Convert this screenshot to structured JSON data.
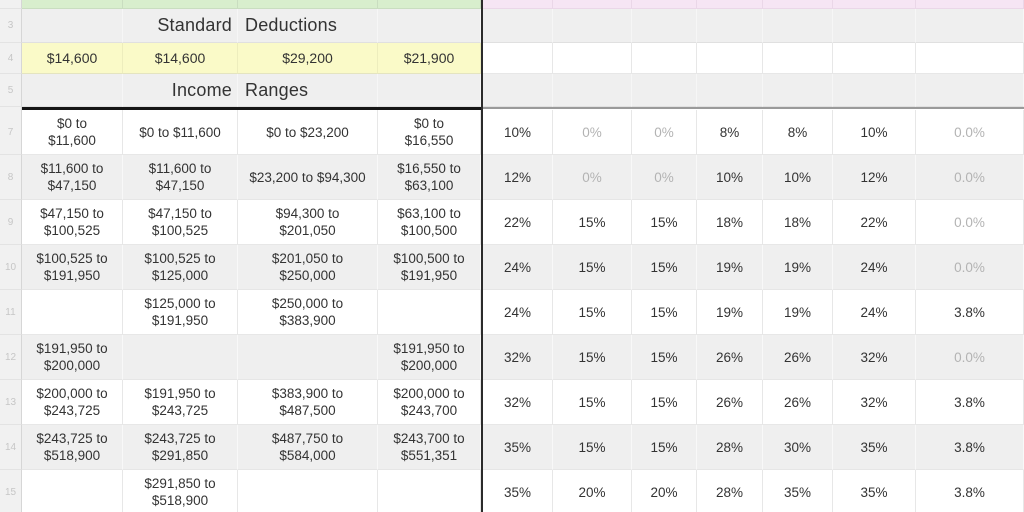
{
  "colors": {
    "top_left_band": "#d8eecd",
    "top_right_band": "#f6e5f4",
    "deduction_row": "#fafac8",
    "shaded_row": "#efefef",
    "muted_text": "#b3b3b3",
    "text": "#333333"
  },
  "sheet": {
    "header_rows": [
      {
        "row_number": "3",
        "word_left": "Standard",
        "word_right": "Deductions"
      },
      {
        "row_number": "5",
        "word_left": "Income",
        "word_right": "Ranges"
      }
    ],
    "deduction_row": {
      "row_number": "4",
      "values": [
        "$14,600",
        "$14,600",
        "$29,200",
        "$21,900"
      ]
    },
    "bracket_rows": [
      {
        "row_number": "7",
        "ranges": [
          "$0 to\n$11,600",
          "$0 to $11,600",
          "$0 to $23,200",
          "$0 to\n$16,550"
        ],
        "rates": [
          "10%",
          "0%",
          "0%",
          "8%",
          "8%",
          "10%",
          "0.0%"
        ],
        "muted": [
          false,
          true,
          true,
          false,
          false,
          false,
          true
        ],
        "shaded": false
      },
      {
        "row_number": "8",
        "ranges": [
          "$11,600 to\n$47,150",
          "$11,600 to\n$47,150",
          "$23,200 to $94,300",
          "$16,550 to\n$63,100"
        ],
        "rates": [
          "12%",
          "0%",
          "0%",
          "10%",
          "10%",
          "12%",
          "0.0%"
        ],
        "muted": [
          false,
          true,
          true,
          false,
          false,
          false,
          true
        ],
        "shaded": true
      },
      {
        "row_number": "9",
        "ranges": [
          "$47,150 to\n$100,525",
          "$47,150 to\n$100,525",
          "$94,300 to\n$201,050",
          "$63,100 to\n$100,500"
        ],
        "rates": [
          "22%",
          "15%",
          "15%",
          "18%",
          "18%",
          "22%",
          "0.0%"
        ],
        "muted": [
          false,
          false,
          false,
          false,
          false,
          false,
          true
        ],
        "shaded": false
      },
      {
        "row_number": "10",
        "ranges": [
          "$100,525 to\n$191,950",
          "$100,525 to\n$125,000",
          "$201,050 to\n$250,000",
          "$100,500 to\n$191,950"
        ],
        "rates": [
          "24%",
          "15%",
          "15%",
          "19%",
          "19%",
          "24%",
          "0.0%"
        ],
        "muted": [
          false,
          false,
          false,
          false,
          false,
          false,
          true
        ],
        "shaded": true
      },
      {
        "row_number": "11",
        "ranges": [
          "",
          "$125,000 to\n$191,950",
          "$250,000 to\n$383,900",
          ""
        ],
        "rates": [
          "24%",
          "15%",
          "15%",
          "19%",
          "19%",
          "24%",
          "3.8%"
        ],
        "muted": [
          false,
          false,
          false,
          false,
          false,
          false,
          false
        ],
        "shaded": false
      },
      {
        "row_number": "12",
        "ranges": [
          "$191,950 to\n$200,000",
          "",
          "",
          "$191,950 to\n$200,000"
        ],
        "rates": [
          "32%",
          "15%",
          "15%",
          "26%",
          "26%",
          "32%",
          "0.0%"
        ],
        "muted": [
          false,
          false,
          false,
          false,
          false,
          false,
          true
        ],
        "shaded": true
      },
      {
        "row_number": "13",
        "ranges": [
          "$200,000 to\n$243,725",
          "$191,950 to\n$243,725",
          "$383,900 to\n$487,500",
          "$200,000 to\n$243,700"
        ],
        "rates": [
          "32%",
          "15%",
          "15%",
          "26%",
          "26%",
          "32%",
          "3.8%"
        ],
        "muted": [
          false,
          false,
          false,
          false,
          false,
          false,
          false
        ],
        "shaded": false
      },
      {
        "row_number": "14",
        "ranges": [
          "$243,725 to\n$518,900",
          "$243,725 to\n$291,850",
          "$487,750 to\n$584,000",
          "$243,700 to\n$551,351"
        ],
        "rates": [
          "35%",
          "15%",
          "15%",
          "28%",
          "30%",
          "35%",
          "3.8%"
        ],
        "muted": [
          false,
          false,
          false,
          false,
          false,
          false,
          false
        ],
        "shaded": true
      },
      {
        "row_number": "15",
        "ranges": [
          "",
          "$291,850 to\n$518,900",
          "",
          ""
        ],
        "rates": [
          "35%",
          "20%",
          "20%",
          "28%",
          "35%",
          "35%",
          "3.8%"
        ],
        "muted": [
          false,
          false,
          false,
          false,
          false,
          false,
          false
        ],
        "shaded": false
      }
    ]
  }
}
